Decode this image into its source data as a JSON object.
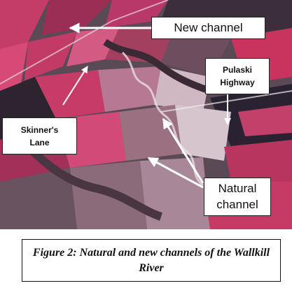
{
  "figure": {
    "labels": {
      "new_channel": "New channel",
      "pulaski_highway": "Pulaski\nHighway",
      "skinners_lane": "Skinner's\nLane",
      "natural_channel": "Natural\nchannel"
    },
    "caption": "Figure 2: Natural and new channels of the Wallkill River"
  }
}
